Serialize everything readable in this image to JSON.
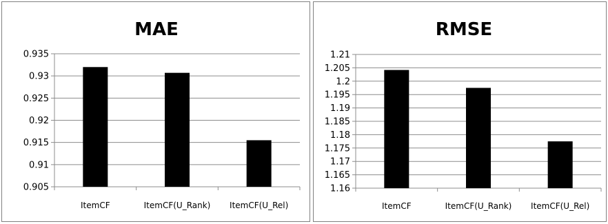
{
  "chart_data": [
    {
      "type": "bar",
      "title": "MAE",
      "categories": [
        "ItemCF",
        "ItemCF(U_Rank)",
        "ItemCF(U_Rel)"
      ],
      "values": [
        0.932,
        0.9307,
        0.9155
      ],
      "yticks": [
        "0.905",
        "0.91",
        "0.915",
        "0.92",
        "0.925",
        "0.93",
        "0.935"
      ],
      "ylim": [
        0.905,
        0.935
      ],
      "grid": true,
      "legend": "none",
      "bar_color": "#000000"
    },
    {
      "type": "bar",
      "title": "RMSE",
      "categories": [
        "ItemCF",
        "ItemCF(U_Rank)",
        "ItemCF(U_Rel)"
      ],
      "values": [
        1.2042,
        1.1975,
        1.1775
      ],
      "yticks": [
        "1.16",
        "1.165",
        "1.17",
        "1.175",
        "1.18",
        "1.185",
        "1.19",
        "1.195",
        "1.2",
        "1.205",
        "1.21"
      ],
      "ylim": [
        1.16,
        1.21
      ],
      "grid": true,
      "legend": "none",
      "bar_color": "#000000"
    }
  ]
}
